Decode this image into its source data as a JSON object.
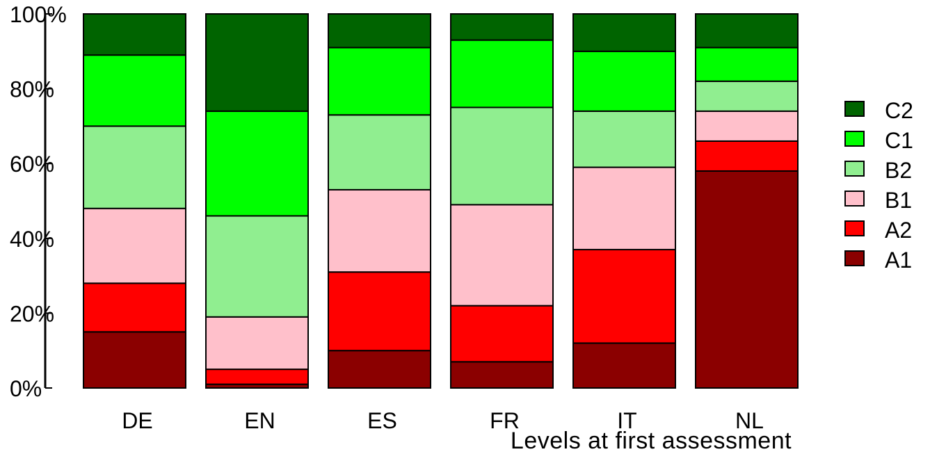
{
  "chart_data": {
    "type": "bar",
    "stacked": true,
    "percent": true,
    "categories": [
      "DE",
      "EN",
      "ES",
      "FR",
      "IT",
      "NL"
    ],
    "series": [
      {
        "name": "A1",
        "color": "#8b0000",
        "values": [
          15,
          1,
          10,
          7,
          12,
          58
        ]
      },
      {
        "name": "A2",
        "color": "#ff0000",
        "values": [
          13,
          4,
          21,
          15,
          25,
          8
        ]
      },
      {
        "name": "B1",
        "color": "#ffc0cb",
        "values": [
          20,
          14,
          22,
          27,
          22,
          8
        ]
      },
      {
        "name": "B2",
        "color": "#90ee90",
        "values": [
          22,
          27,
          20,
          26,
          15,
          8
        ]
      },
      {
        "name": "C1",
        "color": "#00ff00",
        "values": [
          19,
          28,
          18,
          18,
          16,
          9
        ]
      },
      {
        "name": "C2",
        "color": "#006400",
        "values": [
          11,
          26,
          9,
          7,
          10,
          9
        ]
      }
    ],
    "yticks": [
      "0%",
      "20%",
      "40%",
      "60%",
      "80%",
      "100%"
    ],
    "ylim": [
      0,
      100
    ],
    "xlabel": "Levels at first assessment",
    "ylabel": "",
    "title": "",
    "legend_position": "right",
    "legend_order": [
      "C2",
      "C1",
      "B2",
      "B1",
      "A2",
      "A1"
    ],
    "grid": false
  }
}
